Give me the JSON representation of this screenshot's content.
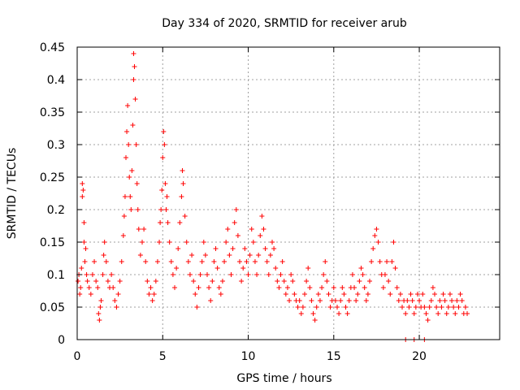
{
  "chart_data": {
    "type": "scatter",
    "title": "Day 334 of 2020, SRMTID for receiver arub",
    "xlabel": "GPS time / hours",
    "ylabel": "SRMTID / TECUs",
    "xlim": [
      0,
      24.7
    ],
    "ylim": [
      0,
      0.45
    ],
    "x_ticks": [
      0,
      5,
      10,
      15,
      20
    ],
    "x_tick_labels": [
      "0",
      "5",
      "10",
      "15",
      "20"
    ],
    "y_ticks": [
      0,
      0.05,
      0.1,
      0.15,
      0.2,
      0.25,
      0.3,
      0.35,
      0.4,
      0.45
    ],
    "y_tick_labels": [
      "0",
      "0.05",
      "0.1",
      "0.15",
      "0.2",
      "0.25",
      "0.3",
      "0.35",
      "0.4",
      "0.45"
    ],
    "grid": true,
    "marker": "+",
    "color": "#ff0000",
    "series": [
      {
        "name": "SRMTID",
        "points": [
          [
            0.05,
            0.09
          ],
          [
            0.1,
            0.1
          ],
          [
            0.15,
            0.07
          ],
          [
            0.2,
            0.08
          ],
          [
            0.25,
            0.11
          ],
          [
            0.3,
            0.24
          ],
          [
            0.3,
            0.22
          ],
          [
            0.35,
            0.23
          ],
          [
            0.4,
            0.18
          ],
          [
            0.4,
            0.15
          ],
          [
            0.45,
            0.12
          ],
          [
            0.5,
            0.14
          ],
          [
            0.55,
            0.1
          ],
          [
            0.6,
            0.09
          ],
          [
            0.7,
            0.08
          ],
          [
            0.8,
            0.07
          ],
          [
            0.9,
            0.1
          ],
          [
            1.0,
            0.12
          ],
          [
            1.1,
            0.09
          ],
          [
            1.2,
            0.08
          ],
          [
            1.25,
            0.04
          ],
          [
            1.3,
            0.03
          ],
          [
            1.35,
            0.05
          ],
          [
            1.4,
            0.06
          ],
          [
            1.5,
            0.1
          ],
          [
            1.55,
            0.13
          ],
          [
            1.6,
            0.15
          ],
          [
            1.7,
            0.12
          ],
          [
            1.8,
            0.09
          ],
          [
            1.9,
            0.08
          ],
          [
            2.0,
            0.1
          ],
          [
            2.1,
            0.08
          ],
          [
            2.2,
            0.06
          ],
          [
            2.3,
            0.05
          ],
          [
            2.4,
            0.07
          ],
          [
            2.5,
            0.09
          ],
          [
            2.6,
            0.12
          ],
          [
            2.7,
            0.16
          ],
          [
            2.75,
            0.19
          ],
          [
            2.8,
            0.22
          ],
          [
            2.85,
            0.28
          ],
          [
            2.9,
            0.32
          ],
          [
            2.95,
            0.36
          ],
          [
            3.0,
            0.3
          ],
          [
            3.05,
            0.25
          ],
          [
            3.1,
            0.22
          ],
          [
            3.15,
            0.2
          ],
          [
            3.2,
            0.26
          ],
          [
            3.25,
            0.33
          ],
          [
            3.3,
            0.4
          ],
          [
            3.3,
            0.44
          ],
          [
            3.35,
            0.42
          ],
          [
            3.4,
            0.37
          ],
          [
            3.45,
            0.3
          ],
          [
            3.5,
            0.24
          ],
          [
            3.55,
            0.2
          ],
          [
            3.6,
            0.17
          ],
          [
            3.7,
            0.13
          ],
          [
            3.8,
            0.15
          ],
          [
            3.9,
            0.17
          ],
          [
            4.0,
            0.12
          ],
          [
            4.1,
            0.09
          ],
          [
            4.2,
            0.07
          ],
          [
            4.3,
            0.08
          ],
          [
            4.4,
            0.06
          ],
          [
            4.5,
            0.07
          ],
          [
            4.6,
            0.09
          ],
          [
            4.7,
            0.12
          ],
          [
            4.8,
            0.15
          ],
          [
            4.85,
            0.18
          ],
          [
            4.9,
            0.2
          ],
          [
            4.95,
            0.23
          ],
          [
            5.0,
            0.28
          ],
          [
            5.05,
            0.32
          ],
          [
            5.1,
            0.3
          ],
          [
            5.15,
            0.24
          ],
          [
            5.2,
            0.2
          ],
          [
            5.25,
            0.22
          ],
          [
            5.3,
            0.18
          ],
          [
            5.4,
            0.15
          ],
          [
            5.5,
            0.12
          ],
          [
            5.6,
            0.1
          ],
          [
            5.7,
            0.08
          ],
          [
            5.8,
            0.11
          ],
          [
            5.9,
            0.14
          ],
          [
            6.0,
            0.18
          ],
          [
            6.1,
            0.22
          ],
          [
            6.15,
            0.26
          ],
          [
            6.2,
            0.24
          ],
          [
            6.3,
            0.19
          ],
          [
            6.4,
            0.15
          ],
          [
            6.5,
            0.12
          ],
          [
            6.6,
            0.1
          ],
          [
            6.7,
            0.13
          ],
          [
            6.8,
            0.09
          ],
          [
            6.9,
            0.07
          ],
          [
            7.0,
            0.05
          ],
          [
            7.1,
            0.08
          ],
          [
            7.2,
            0.1
          ],
          [
            7.3,
            0.12
          ],
          [
            7.4,
            0.15
          ],
          [
            7.5,
            0.13
          ],
          [
            7.6,
            0.1
          ],
          [
            7.7,
            0.08
          ],
          [
            7.8,
            0.06
          ],
          [
            7.9,
            0.09
          ],
          [
            8.0,
            0.12
          ],
          [
            8.1,
            0.14
          ],
          [
            8.2,
            0.11
          ],
          [
            8.3,
            0.08
          ],
          [
            8.4,
            0.07
          ],
          [
            8.5,
            0.09
          ],
          [
            8.6,
            0.12
          ],
          [
            8.7,
            0.15
          ],
          [
            8.8,
            0.17
          ],
          [
            8.9,
            0.13
          ],
          [
            9.0,
            0.1
          ],
          [
            9.1,
            0.14
          ],
          [
            9.2,
            0.18
          ],
          [
            9.3,
            0.2
          ],
          [
            9.4,
            0.16
          ],
          [
            9.5,
            0.12
          ],
          [
            9.6,
            0.09
          ],
          [
            9.7,
            0.11
          ],
          [
            9.8,
            0.14
          ],
          [
            9.9,
            0.12
          ],
          [
            10.0,
            0.1
          ],
          [
            10.1,
            0.13
          ],
          [
            10.2,
            0.17
          ],
          [
            10.3,
            0.15
          ],
          [
            10.4,
            0.12
          ],
          [
            10.5,
            0.1
          ],
          [
            10.6,
            0.13
          ],
          [
            10.7,
            0.16
          ],
          [
            10.8,
            0.19
          ],
          [
            10.9,
            0.17
          ],
          [
            11.0,
            0.14
          ],
          [
            11.1,
            0.12
          ],
          [
            11.2,
            0.1
          ],
          [
            11.3,
            0.13
          ],
          [
            11.4,
            0.15
          ],
          [
            11.5,
            0.14
          ],
          [
            11.6,
            0.11
          ],
          [
            11.7,
            0.09
          ],
          [
            11.8,
            0.08
          ],
          [
            11.9,
            0.1
          ],
          [
            12.0,
            0.12
          ],
          [
            12.1,
            0.09
          ],
          [
            12.2,
            0.07
          ],
          [
            12.3,
            0.08
          ],
          [
            12.4,
            0.06
          ],
          [
            12.5,
            0.1
          ],
          [
            12.6,
            0.09
          ],
          [
            12.7,
            0.07
          ],
          [
            12.8,
            0.06
          ],
          [
            12.9,
            0.05
          ],
          [
            13.0,
            0.06
          ],
          [
            13.1,
            0.04
          ],
          [
            13.2,
            0.05
          ],
          [
            13.3,
            0.07
          ],
          [
            13.4,
            0.09
          ],
          [
            13.5,
            0.11
          ],
          [
            13.6,
            0.08
          ],
          [
            13.7,
            0.06
          ],
          [
            13.8,
            0.04
          ],
          [
            13.9,
            0.03
          ],
          [
            14.0,
            0.05
          ],
          [
            14.1,
            0.07
          ],
          [
            14.2,
            0.06
          ],
          [
            14.3,
            0.08
          ],
          [
            14.4,
            0.1
          ],
          [
            14.5,
            0.12
          ],
          [
            14.6,
            0.09
          ],
          [
            14.7,
            0.07
          ],
          [
            14.8,
            0.05
          ],
          [
            14.9,
            0.06
          ],
          [
            15.0,
            0.08
          ],
          [
            15.1,
            0.06
          ],
          [
            15.2,
            0.05
          ],
          [
            15.3,
            0.04
          ],
          [
            15.4,
            0.06
          ],
          [
            15.5,
            0.08
          ],
          [
            15.6,
            0.07
          ],
          [
            15.7,
            0.05
          ],
          [
            15.8,
            0.04
          ],
          [
            15.9,
            0.06
          ],
          [
            16.0,
            0.08
          ],
          [
            16.1,
            0.1
          ],
          [
            16.2,
            0.08
          ],
          [
            16.3,
            0.06
          ],
          [
            16.4,
            0.07
          ],
          [
            16.5,
            0.09
          ],
          [
            16.6,
            0.11
          ],
          [
            16.7,
            0.1
          ],
          [
            16.8,
            0.08
          ],
          [
            16.9,
            0.06
          ],
          [
            17.0,
            0.07
          ],
          [
            17.1,
            0.09
          ],
          [
            17.2,
            0.12
          ],
          [
            17.3,
            0.14
          ],
          [
            17.4,
            0.16
          ],
          [
            17.5,
            0.17
          ],
          [
            17.6,
            0.15
          ],
          [
            17.7,
            0.12
          ],
          [
            17.8,
            0.1
          ],
          [
            17.9,
            0.08
          ],
          [
            18.0,
            0.1
          ],
          [
            18.1,
            0.12
          ],
          [
            18.2,
            0.09
          ],
          [
            18.3,
            0.07
          ],
          [
            18.4,
            0.12
          ],
          [
            18.5,
            0.15
          ],
          [
            18.6,
            0.11
          ],
          [
            18.7,
            0.08
          ],
          [
            18.8,
            0.06
          ],
          [
            18.9,
            0.07
          ],
          [
            19.0,
            0.05
          ],
          [
            19.1,
            0.06
          ],
          [
            19.2,
            0.04
          ],
          [
            19.3,
            0.06
          ],
          [
            19.4,
            0.05
          ],
          [
            19.5,
            0.07
          ],
          [
            19.6,
            0.06
          ],
          [
            19.7,
            0.04
          ],
          [
            19.8,
            0.05
          ],
          [
            19.9,
            0.07
          ],
          [
            20.0,
            0.06
          ],
          [
            20.1,
            0.05
          ],
          [
            20.2,
            0.07
          ],
          [
            20.3,
            0.05
          ],
          [
            20.4,
            0.04
          ],
          [
            20.5,
            0.03
          ],
          [
            20.6,
            0.05
          ],
          [
            20.7,
            0.06
          ],
          [
            20.8,
            0.08
          ],
          [
            20.9,
            0.07
          ],
          [
            21.0,
            0.05
          ],
          [
            21.1,
            0.04
          ],
          [
            21.2,
            0.06
          ],
          [
            21.3,
            0.05
          ],
          [
            21.4,
            0.07
          ],
          [
            21.5,
            0.06
          ],
          [
            21.6,
            0.04
          ],
          [
            21.7,
            0.05
          ],
          [
            21.8,
            0.07
          ],
          [
            21.9,
            0.06
          ],
          [
            22.0,
            0.05
          ],
          [
            22.1,
            0.04
          ],
          [
            22.2,
            0.06
          ],
          [
            22.3,
            0.05
          ],
          [
            22.4,
            0.07
          ],
          [
            22.5,
            0.06
          ],
          [
            22.6,
            0.04
          ],
          [
            22.7,
            0.05
          ],
          [
            22.8,
            0.04
          ],
          [
            19.2,
            0.0
          ],
          [
            19.7,
            0.0
          ],
          [
            20.3,
            0.0
          ]
        ]
      }
    ]
  }
}
